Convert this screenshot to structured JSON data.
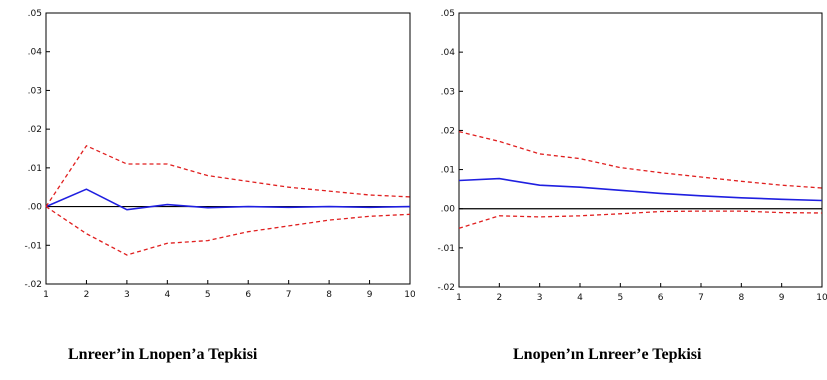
{
  "chart_data": [
    {
      "type": "line",
      "title": "Lnreer’in Lnopen’a Tepkisi",
      "x": [
        1,
        2,
        3,
        4,
        5,
        6,
        7,
        8,
        9,
        10
      ],
      "xlim": [
        1,
        10
      ],
      "ylim": [
        -0.02,
        0.05
      ],
      "x_tick_labels": [
        "1",
        "2",
        "3",
        "4",
        "5",
        "6",
        "7",
        "8",
        "9",
        "10"
      ],
      "y_tick_labels": [
        ".05",
        ".04",
        ".03",
        ".02",
        ".01",
        ".00",
        "-.01",
        "-.02"
      ],
      "y_ticks": [
        0.05,
        0.04,
        0.03,
        0.02,
        0.01,
        0.0,
        -0.01,
        -0.02
      ],
      "grid": false,
      "series": [
        {
          "role": "response",
          "style": "solid",
          "color": "#1f1fe0",
          "values": [
            0.0,
            0.0045,
            -0.0008,
            0.0005,
            -0.0003,
            0.0,
            -0.0002,
            0.0,
            -0.0002,
            0.0
          ]
        },
        {
          "role": "upper band",
          "style": "dashed",
          "color": "#e01f1f",
          "values": [
            0.0,
            0.0157,
            0.011,
            0.011,
            0.008,
            0.0065,
            0.005,
            0.004,
            0.003,
            0.0025
          ]
        },
        {
          "role": "lower band",
          "style": "dashed",
          "color": "#e01f1f",
          "values": [
            0.0,
            -0.007,
            -0.0125,
            -0.0095,
            -0.0088,
            -0.0065,
            -0.005,
            -0.0035,
            -0.0025,
            -0.002
          ]
        }
      ],
      "zero_line": 0.0
    },
    {
      "type": "line",
      "title": "Lnopen’ın Lnreer’e Tepkisi",
      "x": [
        1,
        2,
        3,
        4,
        5,
        6,
        7,
        8,
        9,
        10
      ],
      "xlim": [
        1,
        10
      ],
      "ylim": [
        -0.02,
        0.05
      ],
      "x_tick_labels": [
        "1",
        "2",
        "3",
        "4",
        "5",
        "6",
        "7",
        "8",
        "9",
        "10"
      ],
      "y_tick_labels": [
        ".05",
        ".04",
        ".03",
        ".02",
        ".01",
        ".00",
        "-.01",
        "-.02"
      ],
      "y_ticks": [
        0.05,
        0.04,
        0.03,
        0.02,
        0.01,
        0.0,
        -0.01,
        -0.02
      ],
      "grid": false,
      "series": [
        {
          "role": "response",
          "style": "solid",
          "color": "#1f1fe0",
          "values": [
            0.0072,
            0.0077,
            0.006,
            0.0055,
            0.0047,
            0.0039,
            0.0033,
            0.0028,
            0.0024,
            0.0021
          ]
        },
        {
          "role": "upper band",
          "style": "dashed",
          "color": "#e01f1f",
          "values": [
            0.0197,
            0.0172,
            0.014,
            0.0128,
            0.0105,
            0.0092,
            0.0081,
            0.007,
            0.006,
            0.0053
          ]
        },
        {
          "role": "lower band",
          "style": "dashed",
          "color": "#e01f1f",
          "values": [
            -0.005,
            -0.0018,
            -0.0021,
            -0.0018,
            -0.0013,
            -0.0007,
            -0.0006,
            -0.0006,
            -0.001,
            -0.0011
          ]
        }
      ],
      "zero_line": 0.0
    }
  ]
}
